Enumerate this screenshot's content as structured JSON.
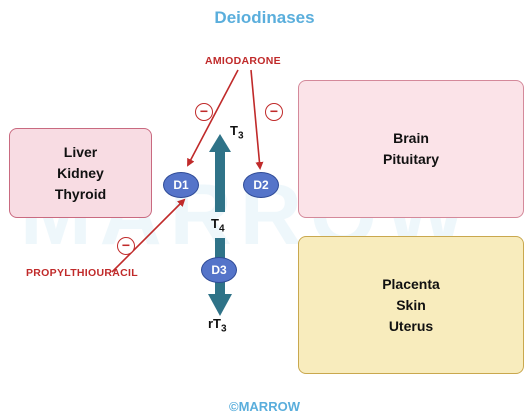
{
  "title": "Deiodinases",
  "watermark": "MARROW",
  "copyright": "©MARROW",
  "drugs": {
    "amiodarone": "AMIODARONE",
    "propylthiouracil": "PROPYLTHIOURACIL"
  },
  "inhibition_symbol": "−",
  "hormones": {
    "t3": {
      "base": "T",
      "sub": "3"
    },
    "t4": {
      "base": "T",
      "sub": "4"
    },
    "rt3": {
      "base": "rT",
      "sub": "3"
    }
  },
  "enzymes": {
    "d1": "D1",
    "d2": "D2",
    "d3": "D3"
  },
  "tissues": {
    "d1": [
      "Liver",
      "Kidney",
      "Thyroid"
    ],
    "d2": [
      "Brain",
      "Pituitary"
    ],
    "d3": [
      "Placenta",
      "Skin",
      "Uterus"
    ]
  },
  "colors": {
    "title": "#5aaedc",
    "drug": "#c02a2a",
    "enzyme": "#5574c9",
    "pathway_arrow": "#2f7388",
    "box_pink": "#f8dce3",
    "box_yellow": "#f8ecbd"
  }
}
